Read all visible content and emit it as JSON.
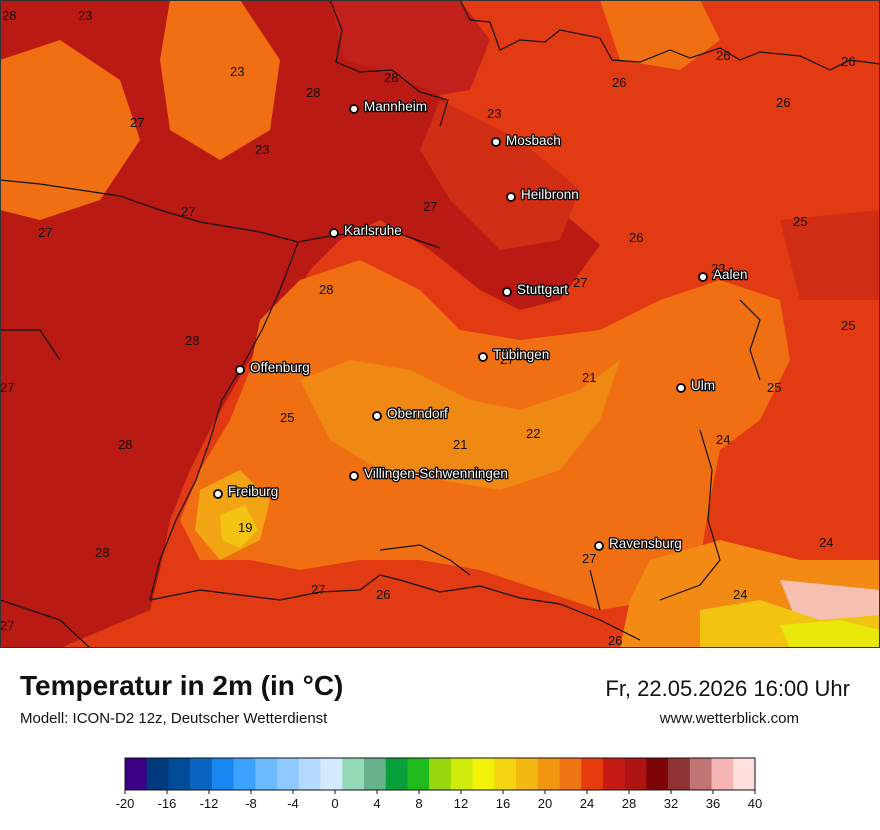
{
  "footer": {
    "title": "Temperatur in 2m (in °C)",
    "subtitle": "Modell: ICON-D2 12z, Deutscher Wetterdienst",
    "datetime": "Fr, 22.05.2026 16:00 Uhr",
    "website": "www.wetterblick.com"
  },
  "cities": [
    {
      "name": "Mannheim"
    },
    {
      "name": "Mosbach"
    },
    {
      "name": "Heilbronn"
    },
    {
      "name": "Karlsruhe"
    },
    {
      "name": "Stuttgart"
    },
    {
      "name": "Aalen"
    },
    {
      "name": "Tübingen"
    },
    {
      "name": "Offenburg"
    },
    {
      "name": "Ulm"
    },
    {
      "name": "Oberndorf"
    },
    {
      "name": "Villingen-Schwenningen"
    },
    {
      "name": "Freiburg"
    },
    {
      "name": "Ravensburg"
    }
  ],
  "temperature_labels": [
    "28",
    "23",
    "23",
    "28",
    "26",
    "26",
    "26",
    "28",
    "27",
    "23",
    "26",
    "23",
    "27",
    "26",
    "27",
    "25",
    "27",
    "27",
    "23",
    "28",
    "28",
    "25",
    "27",
    "21",
    "27",
    "25",
    "28",
    "21",
    "22",
    "24",
    "24",
    "28",
    "19",
    "27",
    "26",
    "27",
    "27",
    "24",
    "26",
    "25"
  ],
  "legend": {
    "ticks": [
      "-20",
      "-16",
      "-12",
      "-8",
      "-4",
      "0",
      "4",
      "8",
      "12",
      "16",
      "20",
      "24",
      "28",
      "32",
      "36",
      "40"
    ],
    "colors": [
      "#3b0086",
      "#003a7c",
      "#004c98",
      "#0a64c2",
      "#1a86ef",
      "#3ca2ff",
      "#6cbaff",
      "#8ecaff",
      "#b4dbff",
      "#d4eaff",
      "#95d9b8",
      "#66b38e",
      "#08a03a",
      "#20ba1c",
      "#9ad80e",
      "#cfeb0c",
      "#f2f208",
      "#f3d611",
      "#f3b811",
      "#f29610",
      "#ef7414",
      "#e63b0c",
      "#c61b14",
      "#af1414",
      "#7e0505",
      "#8e3234",
      "#c07474",
      "#f4b4b4",
      "#ffdede"
    ]
  }
}
